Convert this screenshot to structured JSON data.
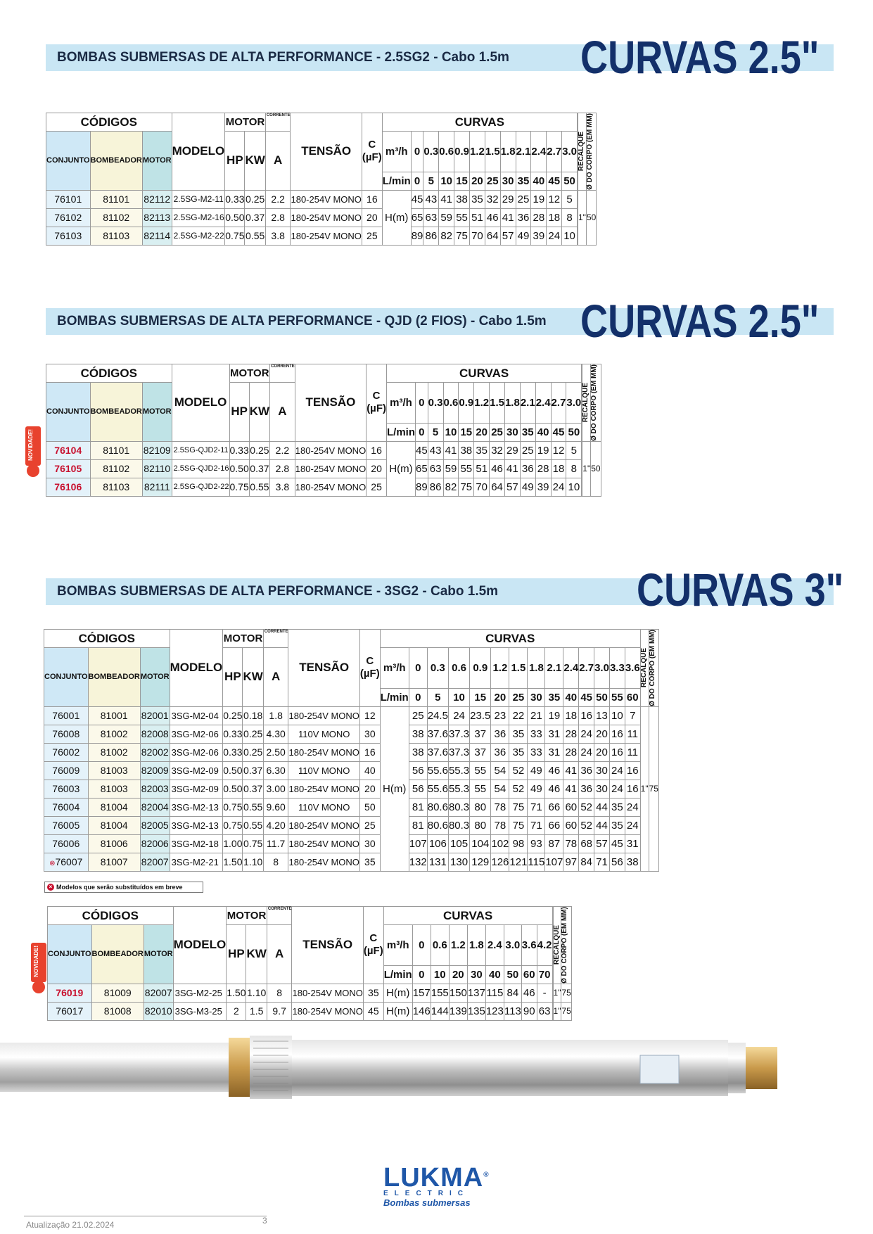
{
  "sections": [
    {
      "banner": "BOMBAS SUBMERSAS DE ALTA PERFORMANCE - 2.5SG2 - Cabo 1.5m",
      "curvas_title": "CURVAS 2.5\""
    },
    {
      "banner": "BOMBAS SUBMERSAS DE ALTA PERFORMANCE - QJD (2 FIOS) - Cabo 1.5m",
      "curvas_title": "CURVAS 2.5\""
    },
    {
      "banner": "BOMBAS SUBMERSAS DE ALTA PERFORMANCE - 3SG2 - Cabo 1.5m",
      "curvas_title": "CURVAS 3\""
    }
  ],
  "headers": {
    "codigos": "CÓDIGOS",
    "conjunto": "CONJUNTO",
    "bombeador": "BOMBEADOR",
    "motor_col": "MOTOR",
    "modelo": "MODELO",
    "motor": "MOTOR",
    "corrente": "CORRENTE",
    "hp": "HP",
    "kw": "KW",
    "a": "A",
    "tensao": "TENSÃO",
    "c": "C",
    "uf": "(µF)",
    "curvas": "CURVAS",
    "m3h": "m³/h",
    "lmin": "L/min",
    "hm": "H(m)",
    "recalque": "RECALQUE",
    "corpo": "Ø DO CORPO (EM MM)"
  },
  "table1": {
    "m3h": [
      "0",
      "0.3",
      "0.6",
      "0.9",
      "1.2",
      "1.5",
      "1.8",
      "2.1",
      "2.4",
      "2.7",
      "3.0"
    ],
    "lmin": [
      "0",
      "5",
      "10",
      "15",
      "20",
      "25",
      "30",
      "35",
      "40",
      "45",
      "50"
    ],
    "recalque": "1\"",
    "corpo": "50",
    "rows": [
      {
        "conj": "76101",
        "bomb": "81101",
        "mot": "82112",
        "modelo": "2.5SG-M2-11",
        "hp": "0.33",
        "kw": "0.25",
        "a": "2.2",
        "tensao": "180-254V MONO",
        "c": "16",
        "h": [
          "45",
          "43",
          "41",
          "38",
          "35",
          "32",
          "29",
          "25",
          "19",
          "12",
          "5"
        ]
      },
      {
        "conj": "76102",
        "bomb": "81102",
        "mot": "82113",
        "modelo": "2.5SG-M2-16",
        "hp": "0.50",
        "kw": "0.37",
        "a": "2.8",
        "tensao": "180-254V MONO",
        "c": "20",
        "h": [
          "65",
          "63",
          "59",
          "55",
          "51",
          "46",
          "41",
          "36",
          "28",
          "18",
          "8"
        ]
      },
      {
        "conj": "76103",
        "bomb": "81103",
        "mot": "82114",
        "modelo": "2.5SG-M2-22",
        "hp": "0.75",
        "kw": "0.55",
        "a": "3.8",
        "tensao": "180-254V MONO",
        "c": "25",
        "h": [
          "89",
          "86",
          "82",
          "75",
          "70",
          "64",
          "57",
          "49",
          "39",
          "24",
          "10"
        ]
      }
    ]
  },
  "table2": {
    "m3h": [
      "0",
      "0.3",
      "0.6",
      "0.9",
      "1.2",
      "1.5",
      "1.8",
      "2.1",
      "2.4",
      "2.7",
      "3.0"
    ],
    "lmin": [
      "0",
      "5",
      "10",
      "15",
      "20",
      "25",
      "30",
      "35",
      "40",
      "45",
      "50"
    ],
    "recalque": "1\"",
    "corpo": "50",
    "rows": [
      {
        "conj": "76104",
        "bomb": "81101",
        "mot": "82109",
        "modelo": "2.5SG-QJD2-11",
        "hp": "0.33",
        "kw": "0.25",
        "a": "2.2",
        "tensao": "180-254V MONO",
        "c": "16",
        "h": [
          "45",
          "43",
          "41",
          "38",
          "35",
          "32",
          "29",
          "25",
          "19",
          "12",
          "5"
        ]
      },
      {
        "conj": "76105",
        "bomb": "81102",
        "mot": "82110",
        "modelo": "2.5SG-QJD2-16",
        "hp": "0.50",
        "kw": "0.37",
        "a": "2.8",
        "tensao": "180-254V MONO",
        "c": "20",
        "h": [
          "65",
          "63",
          "59",
          "55",
          "51",
          "46",
          "41",
          "36",
          "28",
          "18",
          "8"
        ]
      },
      {
        "conj": "76106",
        "bomb": "81103",
        "mot": "82111",
        "modelo": "2.5SG-QJD2-22",
        "hp": "0.75",
        "kw": "0.55",
        "a": "3.8",
        "tensao": "180-254V MONO",
        "c": "25",
        "h": [
          "89",
          "86",
          "82",
          "75",
          "70",
          "64",
          "57",
          "49",
          "39",
          "24",
          "10"
        ]
      }
    ]
  },
  "table3": {
    "m3h": [
      "0",
      "0.3",
      "0.6",
      "0.9",
      "1.2",
      "1.5",
      "1.8",
      "2.1",
      "2.4",
      "2.7",
      "3.0",
      "3.3",
      "3.6"
    ],
    "lmin": [
      "0",
      "5",
      "10",
      "15",
      "20",
      "25",
      "30",
      "35",
      "40",
      "45",
      "50",
      "55",
      "60"
    ],
    "recalque": "1\"",
    "corpo": "75",
    "rows": [
      {
        "conj": "76001",
        "bomb": "81001",
        "mot": "82001",
        "modelo": "3SG-M2-04",
        "hp": "0.25",
        "kw": "0.18",
        "a": "1.8",
        "tensao": "180-254V MONO",
        "c": "12",
        "h": [
          "25",
          "24.5",
          "24",
          "23.5",
          "23",
          "22",
          "21",
          "19",
          "18",
          "16",
          "13",
          "10",
          "7"
        ]
      },
      {
        "conj": "76008",
        "bomb": "81002",
        "mot": "82008",
        "modelo": "3SG-M2-06",
        "hp": "0.33",
        "kw": "0.25",
        "a": "4.30",
        "tensao": "110V MONO",
        "c": "30",
        "h": [
          "38",
          "37.6",
          "37.3",
          "37",
          "36",
          "35",
          "33",
          "31",
          "28",
          "24",
          "20",
          "16",
          "11"
        ]
      },
      {
        "conj": "76002",
        "bomb": "81002",
        "mot": "82002",
        "modelo": "3SG-M2-06",
        "hp": "0.33",
        "kw": "0.25",
        "a": "2.50",
        "tensao": "180-254V MONO",
        "c": "16",
        "h": [
          "38",
          "37.6",
          "37.3",
          "37",
          "36",
          "35",
          "33",
          "31",
          "28",
          "24",
          "20",
          "16",
          "11"
        ]
      },
      {
        "conj": "76009",
        "bomb": "81003",
        "mot": "82009",
        "modelo": "3SG-M2-09",
        "hp": "0.50",
        "kw": "0.37",
        "a": "6.30",
        "tensao": "110V MONO",
        "c": "40",
        "h": [
          "56",
          "55.6",
          "55.3",
          "55",
          "54",
          "52",
          "49",
          "46",
          "41",
          "36",
          "30",
          "24",
          "16"
        ]
      },
      {
        "conj": "76003",
        "bomb": "81003",
        "mot": "82003",
        "modelo": "3SG-M2-09",
        "hp": "0.50",
        "kw": "0.37",
        "a": "3.00",
        "tensao": "180-254V MONO",
        "c": "20",
        "h": [
          "56",
          "55.6",
          "55.3",
          "55",
          "54",
          "52",
          "49",
          "46",
          "41",
          "36",
          "30",
          "24",
          "16"
        ]
      },
      {
        "conj": "76004",
        "bomb": "81004",
        "mot": "82004",
        "modelo": "3SG-M2-13",
        "hp": "0.75",
        "kw": "0.55",
        "a": "9.60",
        "tensao": "110V MONO",
        "c": "50",
        "h": [
          "81",
          "80.6",
          "80.3",
          "80",
          "78",
          "75",
          "71",
          "66",
          "60",
          "52",
          "44",
          "35",
          "24"
        ]
      },
      {
        "conj": "76005",
        "bomb": "81004",
        "mot": "82005",
        "modelo": "3SG-M2-13",
        "hp": "0.75",
        "kw": "0.55",
        "a": "4.20",
        "tensao": "180-254V MONO",
        "c": "25",
        "h": [
          "81",
          "80.6",
          "80.3",
          "80",
          "78",
          "75",
          "71",
          "66",
          "60",
          "52",
          "44",
          "35",
          "24"
        ]
      },
      {
        "conj": "76006",
        "bomb": "81006",
        "mot": "82006",
        "modelo": "3SG-M2-18",
        "hp": "1.00",
        "kw": "0.75",
        "a": "11.7",
        "tensao": "180-254V MONO",
        "c": "30",
        "h": [
          "107",
          "106",
          "105",
          "104",
          "102",
          "98",
          "93",
          "87",
          "78",
          "68",
          "57",
          "45",
          "31"
        ]
      },
      {
        "conj": "76007",
        "bomb": "81007",
        "mot": "82007",
        "modelo": "3SG-M2-21",
        "hp": "1.50",
        "kw": "1.10",
        "a": "8",
        "tensao": "180-254V MONO",
        "c": "35",
        "h": [
          "132",
          "131",
          "130",
          "129",
          "126",
          "121",
          "115",
          "107",
          "97",
          "84",
          "71",
          "56",
          "38"
        ]
      }
    ],
    "legend": "Modelos que serão substituídos em breve"
  },
  "table4": {
    "m3h": [
      "0",
      "0.6",
      "1.2",
      "1.8",
      "2.4",
      "3.0",
      "3.6",
      "4.2"
    ],
    "lmin": [
      "0",
      "10",
      "20",
      "30",
      "40",
      "50",
      "60",
      "70"
    ],
    "rows": [
      {
        "conj": "76019",
        "bomb": "81009",
        "mot": "82007",
        "modelo": "3SG-M2-25",
        "hp": "1.50",
        "kw": "1.10",
        "a": "8",
        "tensao": "180-254V MONO",
        "c": "35",
        "h": [
          "157",
          "155",
          "150",
          "137",
          "115",
          "84",
          "46",
          "-"
        ],
        "rec": "1\"",
        "corpo": "75"
      },
      {
        "conj": "76017",
        "bomb": "81008",
        "mot": "82010",
        "modelo": "3SG-M3-25",
        "hp": "2",
        "kw": "1.5",
        "a": "9.7",
        "tensao": "180-254V MONO",
        "c": "45",
        "h": [
          "146",
          "144",
          "139",
          "135",
          "123",
          "113",
          "90",
          "63"
        ],
        "rec": "1\"",
        "corpo": "75"
      }
    ]
  },
  "badge": "NOVIDADE!",
  "footer": {
    "update": "Atualização 21.02.2024",
    "page": "3"
  },
  "logo": {
    "main": "LUKMA",
    "sub": "ELECTRIC",
    "tag": "Bombas submersas",
    "reg": "®"
  }
}
